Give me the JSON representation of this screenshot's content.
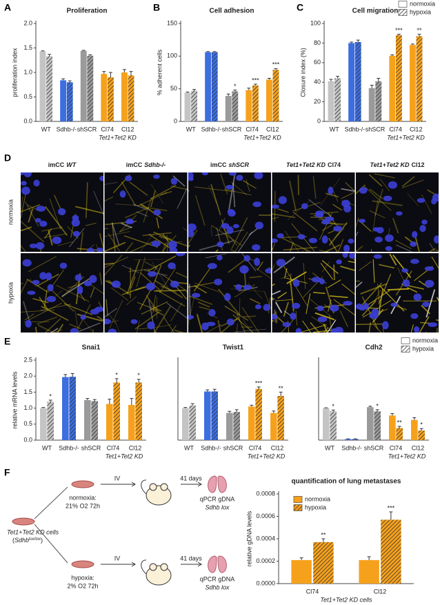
{
  "panel_labels": [
    "A",
    "B",
    "C",
    "D",
    "E",
    "F"
  ],
  "chart_data": [
    {
      "type": "bar",
      "title": "Proliferation",
      "y_label": "proliferation index",
      "categories": [
        "WT",
        "Sdhb-/-",
        "shSCR",
        "Cl74",
        "Cl12"
      ],
      "group_label": "Tet1+Tet2 KD",
      "colors": [
        "#c4c4c4",
        "#3c6ee0",
        "#9a9a9a",
        "#f6a11c",
        "#f6a11c"
      ],
      "ylim": [
        0,
        2
      ],
      "yticks": [
        {
          "value": 0,
          "label": "0.0"
        },
        0.5,
        {
          "value": 1,
          "label": "1.0"
        },
        1.5,
        {
          "value": 2,
          "label": "2.0"
        }
      ],
      "series": [
        {
          "hatch": false,
          "values": [
            1.43,
            0.84,
            1.44,
            0.97,
            1.0
          ],
          "errors": [
            0.01,
            0.03,
            0.01,
            0.05,
            0.06
          ]
        },
        {
          "hatch": true,
          "values": [
            1.33,
            0.8,
            1.34,
            0.9,
            0.94
          ],
          "errors": [
            0.04,
            0.03,
            0.02,
            0.1,
            0.08
          ]
        }
      ]
    },
    {
      "type": "bar",
      "title": "Cell adhesion",
      "y_label": "% adherent cells",
      "categories": [
        "WT",
        "Sdhb-/-",
        "shSCR",
        "Cl74",
        "Cl12"
      ],
      "group_label": "Tet1+Tet2 KD",
      "colors": [
        "#c4c4c4",
        "#3c6ee0",
        "#9a9a9a",
        "#f6a11c",
        "#f6a11c"
      ],
      "ylim": [
        0,
        150
      ],
      "yticks": [
        0,
        50,
        100,
        150
      ],
      "series": [
        {
          "hatch": false,
          "values": [
            44,
            106,
            39,
            48,
            64
          ],
          "errors": [
            1,
            1,
            3,
            3,
            2
          ]
        },
        {
          "hatch": true,
          "values": [
            47,
            106,
            46,
            55,
            79
          ],
          "errors": [
            2,
            1,
            2,
            2,
            2
          ],
          "significance": [
            null,
            null,
            "*",
            "***",
            "***"
          ]
        }
      ]
    },
    {
      "type": "bar",
      "title": "Cell migration",
      "y_label": "Closure index (%)",
      "categories": [
        "WT",
        "Sdhb-/-",
        "shSCR",
        "Cl74",
        "Cl12"
      ],
      "group_label": "Tet1+Tet2 KD",
      "colors": [
        "#c4c4c4",
        "#3c6ee0",
        "#9a9a9a",
        "#f6a11c",
        "#f6a11c"
      ],
      "ylim": [
        0,
        100
      ],
      "yticks": [
        0,
        20,
        40,
        60,
        80,
        100
      ],
      "legend": "top-right",
      "series": [
        {
          "name": "normoxia",
          "hatch": false,
          "values": [
            41,
            80,
            34,
            67,
            78
          ],
          "errors": [
            2,
            1,
            3,
            1,
            1
          ]
        },
        {
          "name": "hypoxia",
          "hatch": true,
          "values": [
            44,
            81,
            41,
            88,
            87
          ],
          "errors": [
            2,
            2,
            3,
            1,
            2
          ],
          "significance": [
            null,
            null,
            null,
            "***",
            "**"
          ]
        }
      ]
    },
    {
      "type": "bar",
      "title": "Snai1",
      "y_label": "relative mRNA levels",
      "categories": [
        "WT",
        "Sdhb-/-",
        "shSCR",
        "Cl74",
        "Cl12"
      ],
      "group_label": "Tet1+Tet2 KD",
      "colors": [
        "#c4c4c4",
        "#3c6ee0",
        "#9a9a9a",
        "#f6a11c",
        "#f6a11c"
      ],
      "ylim": [
        0,
        2.5
      ],
      "yticks": [
        {
          "value": 0,
          "label": "0.0"
        },
        0.5,
        {
          "value": 1,
          "label": "1.0"
        },
        1.5,
        {
          "value": 2,
          "label": "2.0"
        },
        2.5
      ],
      "series": [
        {
          "hatch": false,
          "values": [
            1.0,
            1.97,
            1.25,
            1.13,
            1.1
          ],
          "errors": [
            0.02,
            0.08,
            0.05,
            0.15,
            0.2
          ]
        },
        {
          "hatch": true,
          "values": [
            1.2,
            1.98,
            1.22,
            1.8,
            1.8
          ],
          "errors": [
            0.05,
            0.1,
            0.05,
            0.12,
            0.1
          ],
          "significance": [
            "*",
            null,
            null,
            "*",
            "*"
          ]
        }
      ]
    },
    {
      "type": "bar",
      "title": "Twist1",
      "categories": [
        "WT",
        "Sdhb-/-",
        "shSCR",
        "Cl74",
        "Cl12"
      ],
      "group_label": "Tet1+Tet2 KD",
      "colors": [
        "#c4c4c4",
        "#3c6ee0",
        "#9a9a9a",
        "#f6a11c",
        "#f6a11c"
      ],
      "ylim": [
        0,
        2.5
      ],
      "series": [
        {
          "hatch": false,
          "values": [
            1.0,
            1.52,
            0.85,
            1.05,
            0.85
          ],
          "errors": [
            0.02,
            0.05,
            0.05,
            0.04,
            0.06
          ]
        },
        {
          "hatch": true,
          "values": [
            1.08,
            1.52,
            0.88,
            1.6,
            1.38
          ],
          "errors": [
            0.06,
            0.07,
            0.07,
            0.06,
            0.12
          ],
          "significance": [
            null,
            null,
            null,
            "***",
            "**"
          ]
        }
      ]
    },
    {
      "type": "bar",
      "title": "Cdh2",
      "categories": [
        "WT",
        "Sdhb-/-",
        "shSCR",
        "Cl74",
        "Cl12"
      ],
      "group_label": "Tet1+Tet2 KD",
      "colors": [
        "#c4c4c4",
        "#3c6ee0",
        "#9a9a9a",
        "#f6a11c",
        "#f6a11c"
      ],
      "ylim": [
        0,
        2.5
      ],
      "legend": "top-right",
      "series": [
        {
          "name": "normoxia",
          "hatch": false,
          "values": [
            1.0,
            0.03,
            1.03,
            0.77,
            0.63
          ],
          "errors": [
            0.01,
            0.01,
            0.03,
            0.06,
            0.07
          ]
        },
        {
          "name": "hypoxia",
          "hatch": true,
          "values": [
            0.9,
            0.03,
            0.9,
            0.38,
            0.3
          ],
          "errors": [
            0.04,
            0.01,
            0.05,
            0.05,
            0.06
          ],
          "significance": [
            "*",
            null,
            "*",
            "**",
            "*"
          ]
        }
      ]
    },
    {
      "type": "bar",
      "title": "quantification of lung metastases",
      "y_label": "relative gDNA levels",
      "x_label": "Tet1+Tet2 KD cells",
      "categories": [
        "Cl74",
        "Cl12"
      ],
      "ylim": [
        0,
        0.0008
      ],
      "yticks": [
        {
          "value": 0,
          "label": "0.0000"
        },
        0.0002,
        0.0004,
        0.0006,
        0.0008
      ],
      "legend": "top-left",
      "series": [
        {
          "name": "normoxia",
          "color": "#f6a11c",
          "hatch": false,
          "values": [
            0.00021,
            0.00021
          ],
          "errors": [
            2e-05,
            3e-05
          ]
        },
        {
          "name": "hypoxia",
          "color": "#f6a11c",
          "hatch": true,
          "values": [
            0.00037,
            0.00057
          ],
          "errors": [
            3e-05,
            7e-05
          ],
          "significance": [
            "**",
            "***"
          ]
        }
      ]
    }
  ],
  "microscopy": {
    "columns": [
      [
        {
          "text": "imCC",
          "style": "normal"
        },
        {
          "text": "WT",
          "style": "italic"
        }
      ],
      [
        {
          "text": "imCC",
          "style": "normal"
        },
        {
          "text": "Sdhb-/-",
          "style": "italic"
        }
      ],
      [
        {
          "text": "imCC",
          "style": "normal"
        },
        {
          "text": "shSCR",
          "style": "italic"
        }
      ],
      [
        {
          "text": "Tet1+Tet2 KD",
          "style": "italic"
        },
        {
          "text": "Cl74",
          "style": "normal"
        }
      ],
      [
        {
          "text": "Tet1+Tet2 KD",
          "style": "italic"
        },
        {
          "text": "Cl12",
          "style": "normal"
        }
      ]
    ],
    "rows": [
      "normoxia",
      "hypoxia"
    ]
  },
  "diagram": {
    "start_label": "Tet1+Tet2 KD cells",
    "start_genotype": [
      "(",
      "Sdhb",
      "lox/lox",
      ")"
    ],
    "branches": [
      {
        "condition": "normoxia:",
        "detail": "21% O2 72h",
        "route": "IV",
        "duration": "41 days",
        "readout": "qPCR gDNA",
        "target": "Sdhb lox"
      },
      {
        "condition": "hypoxia:",
        "detail": "2% O2 72h",
        "route": "IV",
        "duration": "41 days",
        "readout": "qPCR gDNA",
        "target": "Sdhb lox"
      }
    ]
  }
}
